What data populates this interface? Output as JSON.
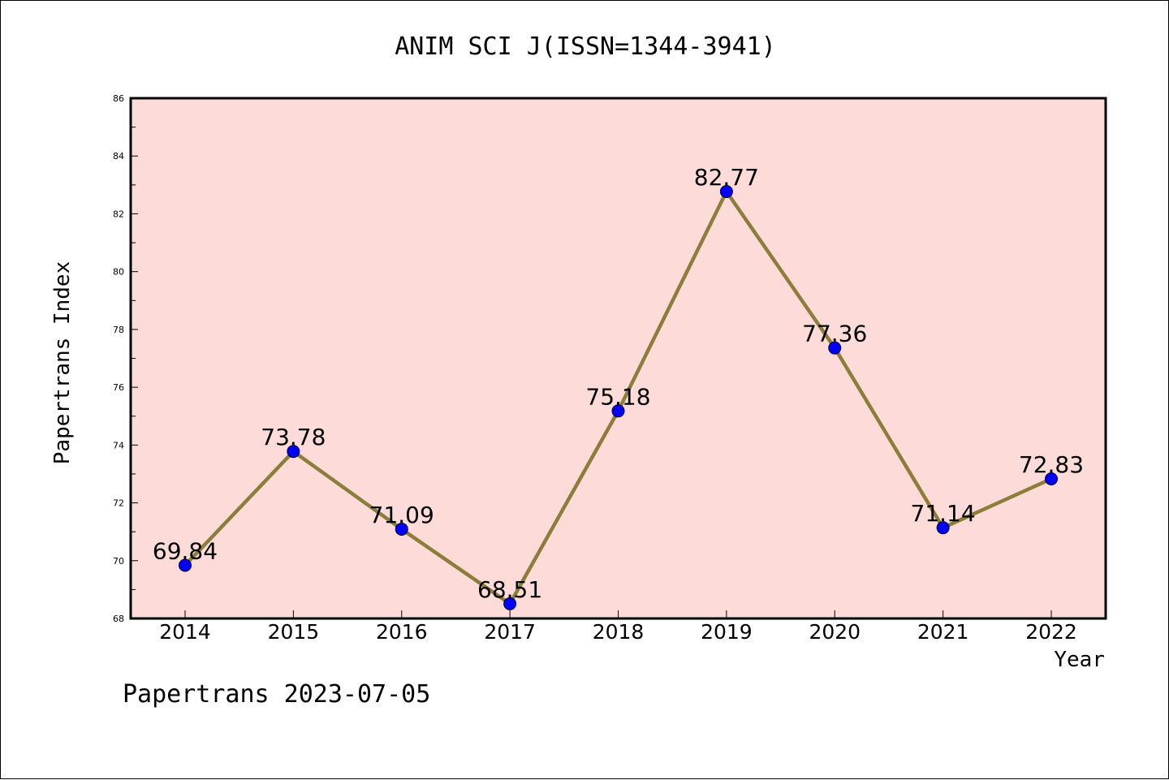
{
  "chart_data": {
    "type": "line",
    "title": "ANIM SCI J(ISSN=1344-3941)",
    "xlabel": "Year",
    "ylabel": "Papertrans Index",
    "footer": "Papertrans 2023-07-05",
    "categories": [
      "2014",
      "2015",
      "2016",
      "2017",
      "2018",
      "2019",
      "2020",
      "2021",
      "2022"
    ],
    "series": [
      {
        "values": [
          69.84,
          73.78,
          71.09,
          68.51,
          75.18,
          82.77,
          77.36,
          71.14,
          72.83
        ],
        "labels": [
          "69.84",
          "73.78",
          "71.09",
          "68.51",
          "75.18",
          "82.77",
          "77.36",
          "71.14",
          "72.83"
        ]
      }
    ],
    "ylim": [
      68,
      86
    ],
    "yticks": [
      "68",
      "70",
      "72",
      "74",
      "76",
      "78",
      "80",
      "82",
      "84",
      "86"
    ],
    "grid": false,
    "legend": "none",
    "colors": {
      "plot_background": "#fddbd8",
      "line": "#8b7d3a",
      "marker": "#0000ff",
      "axes": "#000000"
    }
  }
}
